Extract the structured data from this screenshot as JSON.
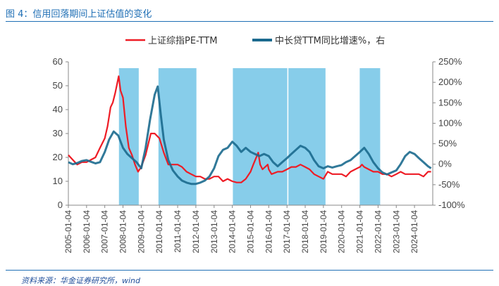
{
  "figure": {
    "title": "图 4：信用回落期间上证估值的变化",
    "source": "资料来源：华金证券研究所，wind"
  },
  "chart_data": {
    "type": "line",
    "title": "",
    "x_range": [
      "2005-01-04",
      "2025-01-04"
    ],
    "x_tick_labels": [
      "2005-01-04",
      "2006-01-04",
      "2007-01-04",
      "2008-01-04",
      "2009-01-04",
      "2010-01-04",
      "2011-01-04",
      "2012-01-04",
      "2013-01-04",
      "2014-01-04",
      "2015-01-04",
      "2016-01-04",
      "2017-01-04",
      "2018-01-04",
      "2019-01-04",
      "2020-01-04",
      "2021-01-04",
      "2022-01-04",
      "2023-01-04",
      "2024-01-04"
    ],
    "y_left": {
      "ylim": [
        0,
        60
      ],
      "ticks": [
        "0",
        "10",
        "20",
        "30",
        "40",
        "50",
        "60"
      ]
    },
    "y_right": {
      "ylim": [
        -100,
        250
      ],
      "ticks": [
        "-100%",
        "-50%",
        "0%",
        "50%",
        "100%",
        "150%",
        "200%",
        "250%"
      ]
    },
    "shaded_periods": [
      [
        "2007-10-15",
        "2008-11-15"
      ],
      [
        "2009-12-15",
        "2012-01-15"
      ],
      [
        "2014-01-15",
        "2017-01-10"
      ],
      [
        "2017-02-01",
        "2019-02-15"
      ],
      [
        "2021-01-01",
        "2022-02-15"
      ]
    ],
    "shade_color": "#87cdea",
    "series": [
      {
        "name": "上证综指PE-TTM",
        "axis": "left",
        "color": "#ee1c25",
        "points": [
          [
            "2005-01-04",
            21
          ],
          [
            "2005-04-01",
            19
          ],
          [
            "2005-07-01",
            17
          ],
          [
            "2005-10-01",
            18
          ],
          [
            "2006-01-04",
            18
          ],
          [
            "2006-04-01",
            19
          ],
          [
            "2006-07-01",
            20
          ],
          [
            "2006-10-01",
            24
          ],
          [
            "2007-01-04",
            28
          ],
          [
            "2007-03-01",
            33
          ],
          [
            "2007-05-01",
            41
          ],
          [
            "2007-06-15",
            43
          ],
          [
            "2007-08-01",
            47
          ],
          [
            "2007-10-10",
            54
          ],
          [
            "2007-11-15",
            48
          ],
          [
            "2008-01-04",
            45
          ],
          [
            "2008-03-01",
            33
          ],
          [
            "2008-05-01",
            24
          ],
          [
            "2008-07-01",
            21
          ],
          [
            "2008-09-01",
            17
          ],
          [
            "2008-11-01",
            14
          ],
          [
            "2009-01-04",
            16
          ],
          [
            "2009-04-01",
            21
          ],
          [
            "2009-07-15",
            30
          ],
          [
            "2009-10-01",
            30
          ],
          [
            "2010-01-04",
            28
          ],
          [
            "2010-04-01",
            22
          ],
          [
            "2010-07-01",
            17
          ],
          [
            "2010-10-01",
            17
          ],
          [
            "2011-01-04",
            17
          ],
          [
            "2011-04-01",
            16
          ],
          [
            "2011-07-01",
            14
          ],
          [
            "2011-10-01",
            13
          ],
          [
            "2012-01-04",
            12
          ],
          [
            "2012-04-01",
            12
          ],
          [
            "2012-07-01",
            11
          ],
          [
            "2012-10-01",
            11
          ],
          [
            "2013-01-04",
            12
          ],
          [
            "2013-04-01",
            12
          ],
          [
            "2013-07-01",
            10
          ],
          [
            "2013-10-01",
            11
          ],
          [
            "2014-01-04",
            10
          ],
          [
            "2014-04-01",
            9.5
          ],
          [
            "2014-07-01",
            9.5
          ],
          [
            "2014-10-01",
            11
          ],
          [
            "2015-01-04",
            14
          ],
          [
            "2015-03-01",
            17
          ],
          [
            "2015-06-08",
            22
          ],
          [
            "2015-07-15",
            17
          ],
          [
            "2015-09-01",
            15
          ],
          [
            "2015-12-15",
            17
          ],
          [
            "2016-01-04",
            15
          ],
          [
            "2016-03-01",
            13
          ],
          [
            "2016-07-01",
            14
          ],
          [
            "2016-10-01",
            14
          ],
          [
            "2017-01-04",
            15
          ],
          [
            "2017-04-01",
            16
          ],
          [
            "2017-07-01",
            16
          ],
          [
            "2017-10-01",
            17
          ],
          [
            "2018-01-04",
            16
          ],
          [
            "2018-04-01",
            15
          ],
          [
            "2018-07-01",
            13
          ],
          [
            "2018-10-01",
            12
          ],
          [
            "2019-01-04",
            11
          ],
          [
            "2019-04-01",
            14
          ],
          [
            "2019-07-01",
            13
          ],
          [
            "2019-10-01",
            13
          ],
          [
            "2020-01-04",
            13
          ],
          [
            "2020-04-01",
            12
          ],
          [
            "2020-07-01",
            14
          ],
          [
            "2020-10-01",
            15
          ],
          [
            "2021-01-04",
            16
          ],
          [
            "2021-02-15",
            17
          ],
          [
            "2021-04-01",
            16
          ],
          [
            "2021-07-01",
            15
          ],
          [
            "2021-10-01",
            14
          ],
          [
            "2022-01-04",
            14
          ],
          [
            "2022-04-01",
            13
          ],
          [
            "2022-07-01",
            13
          ],
          [
            "2022-10-01",
            12
          ],
          [
            "2023-01-04",
            13
          ],
          [
            "2023-04-01",
            14
          ],
          [
            "2023-07-01",
            13
          ],
          [
            "2023-10-01",
            13
          ],
          [
            "2024-01-04",
            13
          ],
          [
            "2024-04-01",
            13
          ],
          [
            "2024-07-01",
            12
          ],
          [
            "2024-10-01",
            14
          ],
          [
            "2024-12-01",
            14
          ]
        ]
      },
      {
        "name": "中长贷TTM同比增速%，右",
        "axis": "right",
        "color": "#1b6a8e",
        "points": [
          [
            "2005-01-04",
            5
          ],
          [
            "2005-04-01",
            0
          ],
          [
            "2005-07-01",
            3
          ],
          [
            "2005-10-01",
            8
          ],
          [
            "2006-01-04",
            10
          ],
          [
            "2006-04-01",
            6
          ],
          [
            "2006-07-01",
            2
          ],
          [
            "2006-10-01",
            5
          ],
          [
            "2007-01-04",
            30
          ],
          [
            "2007-04-01",
            60
          ],
          [
            "2007-07-01",
            80
          ],
          [
            "2007-10-01",
            70
          ],
          [
            "2008-01-04",
            40
          ],
          [
            "2008-04-01",
            25
          ],
          [
            "2008-07-01",
            15
          ],
          [
            "2008-10-01",
            5
          ],
          [
            "2009-01-04",
            -10
          ],
          [
            "2009-04-01",
            40
          ],
          [
            "2009-07-01",
            110
          ],
          [
            "2009-10-01",
            170
          ],
          [
            "2009-12-01",
            190
          ],
          [
            "2010-02-01",
            120
          ],
          [
            "2010-04-01",
            60
          ],
          [
            "2010-07-01",
            10
          ],
          [
            "2010-10-01",
            -15
          ],
          [
            "2011-01-04",
            -30
          ],
          [
            "2011-04-01",
            -40
          ],
          [
            "2011-07-01",
            -45
          ],
          [
            "2011-10-01",
            -48
          ],
          [
            "2012-01-04",
            -48
          ],
          [
            "2012-04-01",
            -45
          ],
          [
            "2012-07-01",
            -40
          ],
          [
            "2012-10-01",
            -30
          ],
          [
            "2013-01-04",
            -10
          ],
          [
            "2013-04-01",
            20
          ],
          [
            "2013-07-01",
            35
          ],
          [
            "2013-10-01",
            40
          ],
          [
            "2014-01-04",
            55
          ],
          [
            "2014-04-01",
            45
          ],
          [
            "2014-07-01",
            30
          ],
          [
            "2014-10-01",
            40
          ],
          [
            "2015-01-04",
            30
          ],
          [
            "2015-04-01",
            25
          ],
          [
            "2015-07-01",
            20
          ],
          [
            "2015-10-01",
            25
          ],
          [
            "2016-01-04",
            20
          ],
          [
            "2016-04-01",
            5
          ],
          [
            "2016-07-01",
            -5
          ],
          [
            "2016-10-01",
            5
          ],
          [
            "2017-01-04",
            15
          ],
          [
            "2017-04-01",
            25
          ],
          [
            "2017-07-01",
            35
          ],
          [
            "2017-10-01",
            45
          ],
          [
            "2018-01-04",
            40
          ],
          [
            "2018-04-01",
            30
          ],
          [
            "2018-07-01",
            10
          ],
          [
            "2018-10-01",
            -5
          ],
          [
            "2019-01-04",
            -10
          ],
          [
            "2019-04-01",
            -5
          ],
          [
            "2019-07-01",
            -8
          ],
          [
            "2019-10-01",
            -5
          ],
          [
            "2020-01-04",
            -2
          ],
          [
            "2020-04-01",
            5
          ],
          [
            "2020-07-01",
            10
          ],
          [
            "2020-10-01",
            20
          ],
          [
            "2021-01-04",
            30
          ],
          [
            "2021-04-01",
            40
          ],
          [
            "2021-07-01",
            25
          ],
          [
            "2021-10-01",
            5
          ],
          [
            "2022-01-04",
            -10
          ],
          [
            "2022-04-01",
            -20
          ],
          [
            "2022-07-01",
            -25
          ],
          [
            "2022-10-01",
            -20
          ],
          [
            "2023-01-04",
            -15
          ],
          [
            "2023-04-01",
            0
          ],
          [
            "2023-07-01",
            20
          ],
          [
            "2023-10-01",
            30
          ],
          [
            "2024-01-04",
            25
          ],
          [
            "2024-04-01",
            15
          ],
          [
            "2024-07-01",
            5
          ],
          [
            "2024-10-01",
            -5
          ],
          [
            "2024-12-01",
            -10
          ]
        ]
      }
    ],
    "legend_position": "top"
  }
}
